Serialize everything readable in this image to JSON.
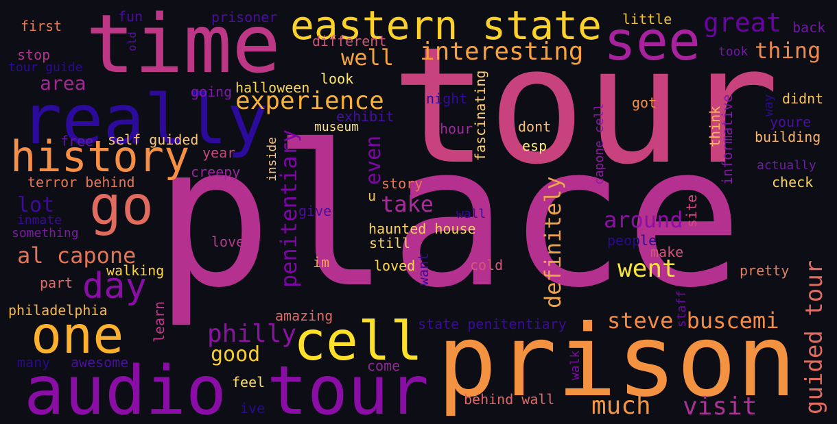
{
  "words": [
    {
      "text": "place",
      "color": "#b5318f"
    },
    {
      "text": "tour",
      "color": "#c8427e"
    },
    {
      "text": "prison",
      "color": "#f39241"
    },
    {
      "text": "time",
      "color": "#bd3786"
    },
    {
      "text": "really",
      "color": "#2c0a9c"
    },
    {
      "text": "audio tour",
      "color": "#8a0da6"
    },
    {
      "text": "eastern state",
      "color": "#fcd12a"
    },
    {
      "text": "see",
      "color": "#a8229d"
    },
    {
      "text": "history",
      "color": "#f79044"
    },
    {
      "text": "go",
      "color": "#e06b5e"
    },
    {
      "text": "one",
      "color": "#fdb12c"
    },
    {
      "text": "cell",
      "color": "#fde02a"
    },
    {
      "text": "day",
      "color": "#8a0da6"
    },
    {
      "text": "experience",
      "color": "#f8b037"
    },
    {
      "text": "interesting",
      "color": "#f9a13a"
    },
    {
      "text": "great",
      "color": "#6a01a7"
    },
    {
      "text": "thing",
      "color": "#f0884a"
    },
    {
      "text": "well",
      "color": "#f5a43f"
    },
    {
      "text": "area",
      "color": "#9e2a91"
    },
    {
      "text": "al capone",
      "color": "#e27558"
    },
    {
      "text": "lot",
      "color": "#3e0a9d"
    },
    {
      "text": "philly",
      "color": "#8c12a4"
    },
    {
      "text": "good",
      "color": "#fbcf2a"
    },
    {
      "text": "take",
      "color": "#ab2b9c"
    },
    {
      "text": "went",
      "color": "#f8e43a"
    },
    {
      "text": "around",
      "color": "#8e0fa5"
    },
    {
      "text": "steve buscemi",
      "color": "#f58c46"
    },
    {
      "text": "much",
      "color": "#f69640"
    },
    {
      "text": "visit",
      "color": "#a83194"
    },
    {
      "text": "guided tour",
      "color": "#e06b5e"
    },
    {
      "text": "definitely",
      "color": "#eba34d"
    },
    {
      "text": "penitentiary",
      "color": "#7e06a7"
    },
    {
      "text": "even",
      "color": "#7e06a7"
    },
    {
      "text": "fun",
      "color": "#4b0d9e"
    },
    {
      "text": "old",
      "color": "#56109c"
    },
    {
      "text": "prisoner",
      "color": "#4a0f9d"
    },
    {
      "text": "first",
      "color": "#e57a56"
    },
    {
      "text": "stop",
      "color": "#b5318f"
    },
    {
      "text": "tour guide",
      "color": "#2e0898"
    },
    {
      "text": "different",
      "color": "#cc5676"
    },
    {
      "text": "little",
      "color": "#f2c43a"
    },
    {
      "text": "back",
      "color": "#6d1aa0"
    },
    {
      "text": "took",
      "color": "#6d1aa0"
    },
    {
      "text": "halloween",
      "color": "#f5d55a"
    },
    {
      "text": "look",
      "color": "#fde86a"
    },
    {
      "text": "going",
      "color": "#7d1aa6"
    },
    {
      "text": "night",
      "color": "#330a9c"
    },
    {
      "text": "got",
      "color": "#f79044"
    },
    {
      "text": "didnt",
      "color": "#f7c25e"
    },
    {
      "text": "exhibit",
      "color": "#44129c"
    },
    {
      "text": "museum",
      "color": "#fde086"
    },
    {
      "text": "hour",
      "color": "#9c2a9b"
    },
    {
      "text": "dont",
      "color": "#f8c07a"
    },
    {
      "text": "esp",
      "color": "#fde870"
    },
    {
      "text": "youre",
      "color": "#4a0f9d"
    },
    {
      "text": "building",
      "color": "#f8b56a"
    },
    {
      "text": "actually",
      "color": "#6b1fa0"
    },
    {
      "text": "check",
      "color": "#fcd45a"
    },
    {
      "text": "free",
      "color": "#5d1aa0"
    },
    {
      "text": "self guided",
      "color": "#fac77a"
    },
    {
      "text": "year",
      "color": "#c7457a"
    },
    {
      "text": "creepy",
      "color": "#9a25a0"
    },
    {
      "text": "terror behind",
      "color": "#e17a5a"
    },
    {
      "text": "inmate",
      "color": "#3a0a9a"
    },
    {
      "text": "something",
      "color": "#7b1aa2"
    },
    {
      "text": "story",
      "color": "#e8785a"
    },
    {
      "text": "u",
      "color": "#f6c25a"
    },
    {
      "text": "give",
      "color": "#4a0f9d"
    },
    {
      "text": "haunted house",
      "color": "#fbd35e"
    },
    {
      "text": "still",
      "color": "#fbd35e"
    },
    {
      "text": "wall",
      "color": "#3a0a9a"
    },
    {
      "text": "people",
      "color": "#2a0a8a"
    },
    {
      "text": "make",
      "color": "#d2577a"
    },
    {
      "text": "love",
      "color": "#b03a8c"
    },
    {
      "text": "im",
      "color": "#f5a45a"
    },
    {
      "text": "loved",
      "color": "#fdd84a"
    },
    {
      "text": "cold",
      "color": "#d6567a"
    },
    {
      "text": "pretty",
      "color": "#e08062"
    },
    {
      "text": "walking",
      "color": "#fbd34a"
    },
    {
      "text": "part",
      "color": "#e26a66"
    },
    {
      "text": "philadelphia",
      "color": "#f7b84a"
    },
    {
      "text": "amazing",
      "color": "#dd6b66"
    },
    {
      "text": "state penitentiary",
      "color": "#3a0a9a"
    },
    {
      "text": "many",
      "color": "#2a0a8a"
    },
    {
      "text": "awesome",
      "color": "#4a0f9d"
    },
    {
      "text": "come",
      "color": "#8e2a96"
    },
    {
      "text": "feel",
      "color": "#fde06a"
    },
    {
      "text": "behind wall",
      "color": "#e06866"
    },
    {
      "text": "ive",
      "color": "#2a0a8a"
    },
    {
      "text": "fascinating",
      "color": "#fdd07a"
    },
    {
      "text": "think",
      "color": "#fcb85a"
    },
    {
      "text": "informative",
      "color": "#7e1aa2"
    },
    {
      "text": "way",
      "color": "#2a0a8a"
    },
    {
      "text": "inside",
      "color": "#f5c58a"
    },
    {
      "text": "capone cell",
      "color": "#8a1aa2"
    },
    {
      "text": "site",
      "color": "#d64a86"
    },
    {
      "text": "want",
      "color": "#3a0a9a"
    },
    {
      "text": "learn",
      "color": "#c03a8c"
    },
    {
      "text": "walk",
      "color": "#7a0aa6"
    },
    {
      "text": "staff",
      "color": "#6a0aa0"
    }
  ]
}
